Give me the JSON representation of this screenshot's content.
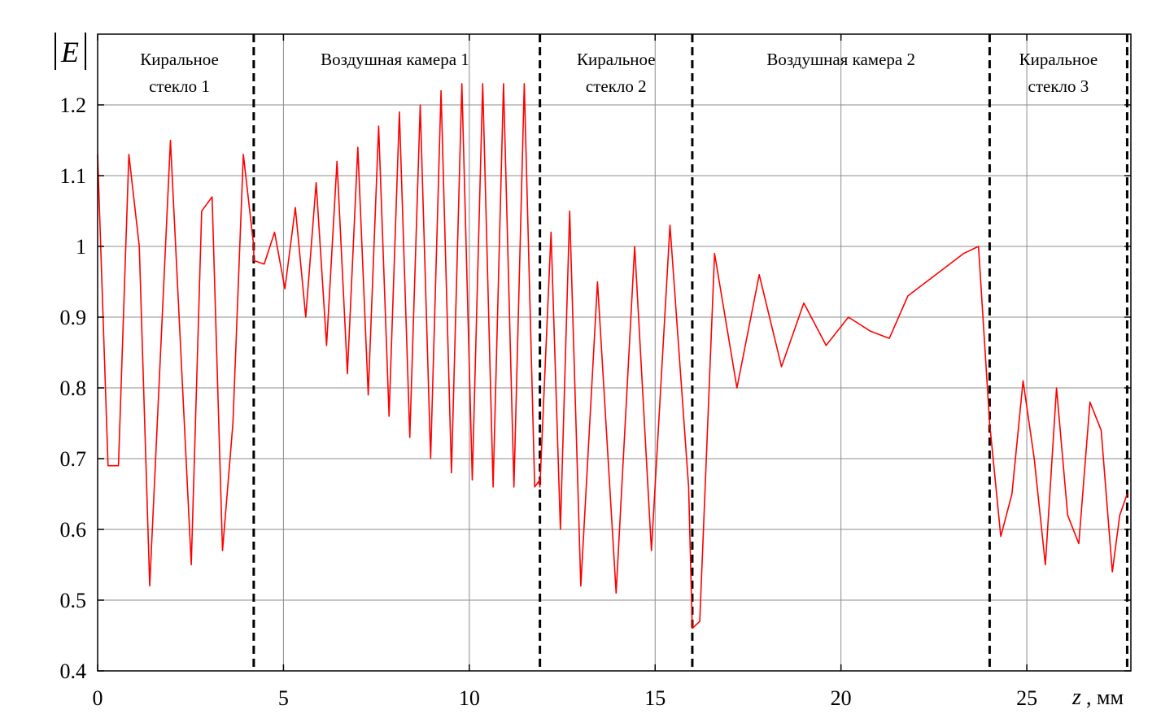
{
  "chart_data": {
    "type": "line",
    "ylabel": "E",
    "xlabel_var": "z",
    "xlabel_unit": ", мм",
    "xlim": [
      0,
      27.8
    ],
    "ylim": [
      0.4,
      1.3
    ],
    "xticks": [
      0,
      5,
      10,
      15,
      20,
      25
    ],
    "xtick_labels": [
      "0",
      "5",
      "10",
      "15",
      "20",
      "25"
    ],
    "yticks": [
      0.4,
      0.5,
      0.6,
      0.7,
      0.8,
      0.9,
      1.0,
      1.1,
      1.2
    ],
    "ytick_labels": [
      "0.4",
      "0.5",
      "0.6",
      "0.7",
      "0.8",
      "0.9",
      "1",
      "1.1",
      "1.2"
    ],
    "grid": true,
    "line_color": "#ff0000",
    "boundaries": [
      4.2,
      11.9,
      16.0,
      24.0,
      27.7
    ],
    "regions": [
      {
        "lines": [
          "Киральное",
          "стекло 1"
        ],
        "x_center": 2.2
      },
      {
        "lines": [
          "Воздушная камера 1"
        ],
        "x_center": 8.0
      },
      {
        "lines": [
          "Киральное",
          "стекло 2"
        ],
        "x_center": 13.95
      },
      {
        "lines": [
          "Воздушная камера 2"
        ],
        "x_center": 20.0
      },
      {
        "lines": [
          "Киральное",
          "стекло 3"
        ],
        "x_center": 25.85
      }
    ],
    "series": [
      {
        "x": [
          0,
          0.28,
          0.56,
          0.84,
          1.12,
          1.4,
          1.96,
          2.52,
          2.8,
          3.08,
          3.36,
          3.64,
          3.92,
          4.2,
          4.2,
          4.48,
          4.76,
          5.04,
          5.32,
          5.6,
          5.88,
          6.16,
          6.44,
          6.72,
          7.0,
          7.28,
          7.56,
          7.84,
          8.12,
          8.4,
          8.68,
          8.96,
          9.24,
          9.52,
          9.8,
          10.08,
          10.36,
          10.64,
          10.92,
          11.2,
          11.48,
          11.76,
          11.9,
          11.9,
          12.2,
          12.45,
          12.7,
          13.0,
          13.45,
          13.95,
          14.45,
          14.9,
          15.4,
          15.9,
          16.0,
          16.2,
          16.6,
          17.2,
          17.8,
          18.4,
          19.0,
          19.6,
          20.2,
          20.8,
          21.3,
          21.8,
          22.3,
          22.8,
          23.3,
          23.7,
          24.0,
          24.3,
          24.6,
          24.9,
          25.2,
          25.5,
          25.8,
          26.1,
          26.4,
          26.7,
          27.0,
          27.3,
          27.5,
          27.7
        ],
        "y": [
          1.13,
          0.69,
          0.69,
          1.13,
          1.0,
          0.52,
          1.15,
          0.55,
          1.05,
          1.07,
          0.57,
          0.75,
          1.13,
          1.0,
          0.98,
          0.975,
          1.02,
          0.94,
          1.055,
          0.9,
          1.09,
          0.86,
          1.12,
          0.82,
          1.14,
          0.79,
          1.17,
          0.76,
          1.19,
          0.73,
          1.2,
          0.7,
          1.22,
          0.68,
          1.23,
          0.67,
          1.23,
          0.66,
          1.23,
          0.66,
          1.23,
          0.66,
          0.67,
          0.66,
          1.02,
          0.6,
          1.05,
          0.52,
          0.95,
          0.51,
          1.0,
          0.57,
          1.03,
          0.66,
          0.46,
          0.47,
          0.99,
          0.8,
          0.96,
          0.83,
          0.92,
          0.86,
          0.9,
          0.88,
          0.87,
          0.93,
          0.95,
          0.97,
          0.99,
          1.0,
          0.75,
          0.59,
          0.65,
          0.81,
          0.7,
          0.55,
          0.8,
          0.62,
          0.58,
          0.78,
          0.74,
          0.54,
          0.62,
          0.65
        ]
      }
    ]
  }
}
